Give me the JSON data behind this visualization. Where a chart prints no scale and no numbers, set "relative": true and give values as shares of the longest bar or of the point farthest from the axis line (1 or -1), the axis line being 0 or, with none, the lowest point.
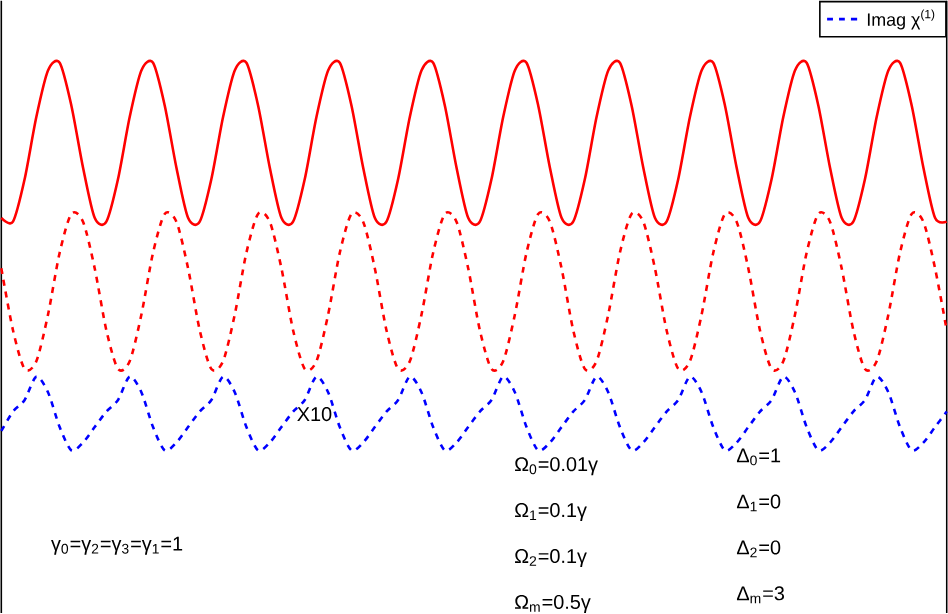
{
  "chart_data": {
    "type": "line",
    "relative": true,
    "legend": "top right",
    "categories": [
      null,
      null,
      null,
      null,
      null,
      null,
      null,
      null,
      null,
      null,
      null,
      null,
      null,
      null,
      null,
      null,
      null,
      null,
      null,
      null,
      null,
      null,
      null,
      null,
      null,
      null,
      null,
      null,
      null,
      null,
      null,
      null,
      null,
      null,
      null,
      null,
      null,
      null,
      null,
      null,
      null,
      null,
      null,
      null,
      null,
      null,
      null,
      null,
      null,
      null,
      null,
      null,
      null,
      null,
      null,
      null,
      null,
      null,
      null,
      null,
      null,
      null,
      null,
      null,
      null,
      null,
      null,
      null,
      null,
      null,
      null,
      null,
      null,
      null,
      null,
      null,
      null,
      null,
      null,
      null,
      null,
      null
    ],
    "series": [
      {
        "color": "#ff0000",
        "line_style": "solid",
        "values": [
          0.6,
          0.59,
          0.7,
          0.86,
          0.98,
          1.0,
          0.89,
          0.73,
          0.6,
          0.59,
          0.7,
          0.86,
          0.98,
          1.0,
          0.89,
          0.73,
          0.6,
          0.59,
          0.7,
          0.86,
          0.98,
          1.0,
          0.89,
          0.73,
          0.6,
          0.59,
          0.7,
          0.86,
          0.98,
          1.0,
          0.89,
          0.73,
          0.6,
          0.59,
          0.7,
          0.86,
          0.98,
          1.0,
          0.89,
          0.73,
          0.6,
          0.59,
          0.7,
          0.86,
          0.98,
          1.0,
          0.89,
          0.73,
          0.6,
          0.59,
          0.7,
          0.86,
          0.98,
          1.0,
          0.89,
          0.73,
          0.6,
          0.59,
          0.7,
          0.86,
          0.98,
          1.0,
          0.89,
          0.73,
          0.6,
          0.59,
          0.7,
          0.86,
          0.98,
          1.0,
          0.89,
          0.73,
          0.6,
          0.59,
          0.7,
          0.86,
          0.98,
          1.0,
          0.89,
          0.73,
          0.6,
          0.59
        ]
      },
      {
        "color": "#ff0000",
        "line_style": "dashed",
        "values": [
          0.47,
          0.31,
          0.21,
          0.23,
          0.35,
          0.51,
          0.61,
          0.59,
          0.47,
          0.31,
          0.21,
          0.23,
          0.35,
          0.51,
          0.61,
          0.59,
          0.47,
          0.31,
          0.21,
          0.23,
          0.35,
          0.51,
          0.61,
          0.59,
          0.47,
          0.31,
          0.21,
          0.23,
          0.35,
          0.51,
          0.61,
          0.59,
          0.47,
          0.31,
          0.21,
          0.23,
          0.35,
          0.51,
          0.61,
          0.59,
          0.47,
          0.31,
          0.21,
          0.23,
          0.35,
          0.51,
          0.61,
          0.59,
          0.47,
          0.31,
          0.21,
          0.23,
          0.35,
          0.51,
          0.61,
          0.59,
          0.47,
          0.31,
          0.21,
          0.23,
          0.35,
          0.51,
          0.61,
          0.59,
          0.47,
          0.31,
          0.21,
          0.23,
          0.35,
          0.51,
          0.61,
          0.59,
          0.47,
          0.31,
          0.21,
          0.23,
          0.35,
          0.51,
          0.61,
          0.59,
          0.47,
          0.31
        ]
      },
      {
        "name": "Imag χ$^{(1)}$",
        "color": "#0000ff",
        "line_style": "dashed",
        "values": [
          0.05,
          0.1,
          0.13,
          0.19,
          0.15,
          0.06,
          0,
          0.02,
          0.06,
          0.1,
          0.13,
          0.19,
          0.15,
          0.06,
          0,
          0.02,
          0.06,
          0.1,
          0.13,
          0.19,
          0.15,
          0.06,
          0,
          0.02,
          0.06,
          0.1,
          0.13,
          0.19,
          0.15,
          0.06,
          0,
          0.02,
          0.06,
          0.1,
          0.13,
          0.19,
          0.15,
          0.06,
          0,
          0.02,
          0.06,
          0.1,
          0.13,
          0.19,
          0.15,
          0.06,
          0,
          0.02,
          0.06,
          0.1,
          0.13,
          0.19,
          0.15,
          0.06,
          0,
          0.02,
          0.06,
          0.1,
          0.13,
          0.19,
          0.15,
          0.06,
          0,
          0.02,
          0.06,
          0.1,
          0.13,
          0.19,
          0.15,
          0.06,
          0,
          0.02,
          0.06,
          0.1,
          0.13,
          0.19,
          0.15,
          0.06,
          0,
          0.02,
          0.06,
          0.1
        ]
      }
    ],
    "annotations": [
      "X10",
      "γ$_{0}$=γ$_{2}$=γ$_{3}$=γ$_{1}$=1",
      "Ω$_{0}$=0.01γ",
      "Ω$_{1}$=0.1γ",
      "Ω$_{2}$=0.1γ",
      "Ω$_{m}$=0.5γ",
      "Δ$_{0}$=1",
      "Δ$_{1}$=0",
      "Δ$_{2}$=0",
      "Δ$_{m}$=3"
    ]
  }
}
